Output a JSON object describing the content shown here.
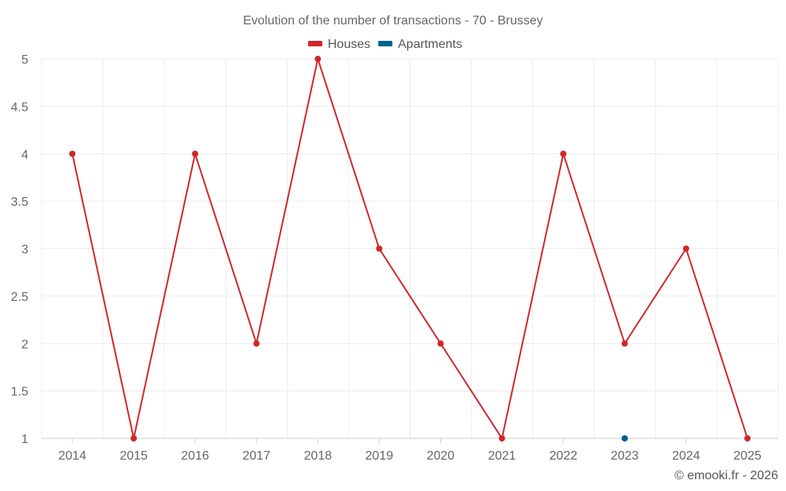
{
  "chart_data": {
    "type": "line",
    "title": "Evolution of the number of transactions - 70 - Brussey",
    "categories": [
      "2014",
      "2015",
      "2016",
      "2017",
      "2018",
      "2019",
      "2020",
      "2021",
      "2022",
      "2023",
      "2024",
      "2025"
    ],
    "y_ticks": [
      "1",
      "1.5",
      "2",
      "2.5",
      "3",
      "3.5",
      "4",
      "4.5",
      "5"
    ],
    "ylim": [
      1,
      5
    ],
    "grid": true,
    "legend_position": "top-center",
    "series": [
      {
        "name": "Houses",
        "color": "#d0262b",
        "values": [
          4,
          1,
          4,
          2,
          5,
          3,
          2,
          1,
          4,
          2,
          3,
          1
        ]
      },
      {
        "name": "Apartments",
        "color": "#005f8f",
        "values": [
          null,
          null,
          null,
          null,
          null,
          null,
          null,
          null,
          null,
          1,
          null,
          null
        ]
      }
    ],
    "credit": "© emooki.fr - 2026"
  }
}
